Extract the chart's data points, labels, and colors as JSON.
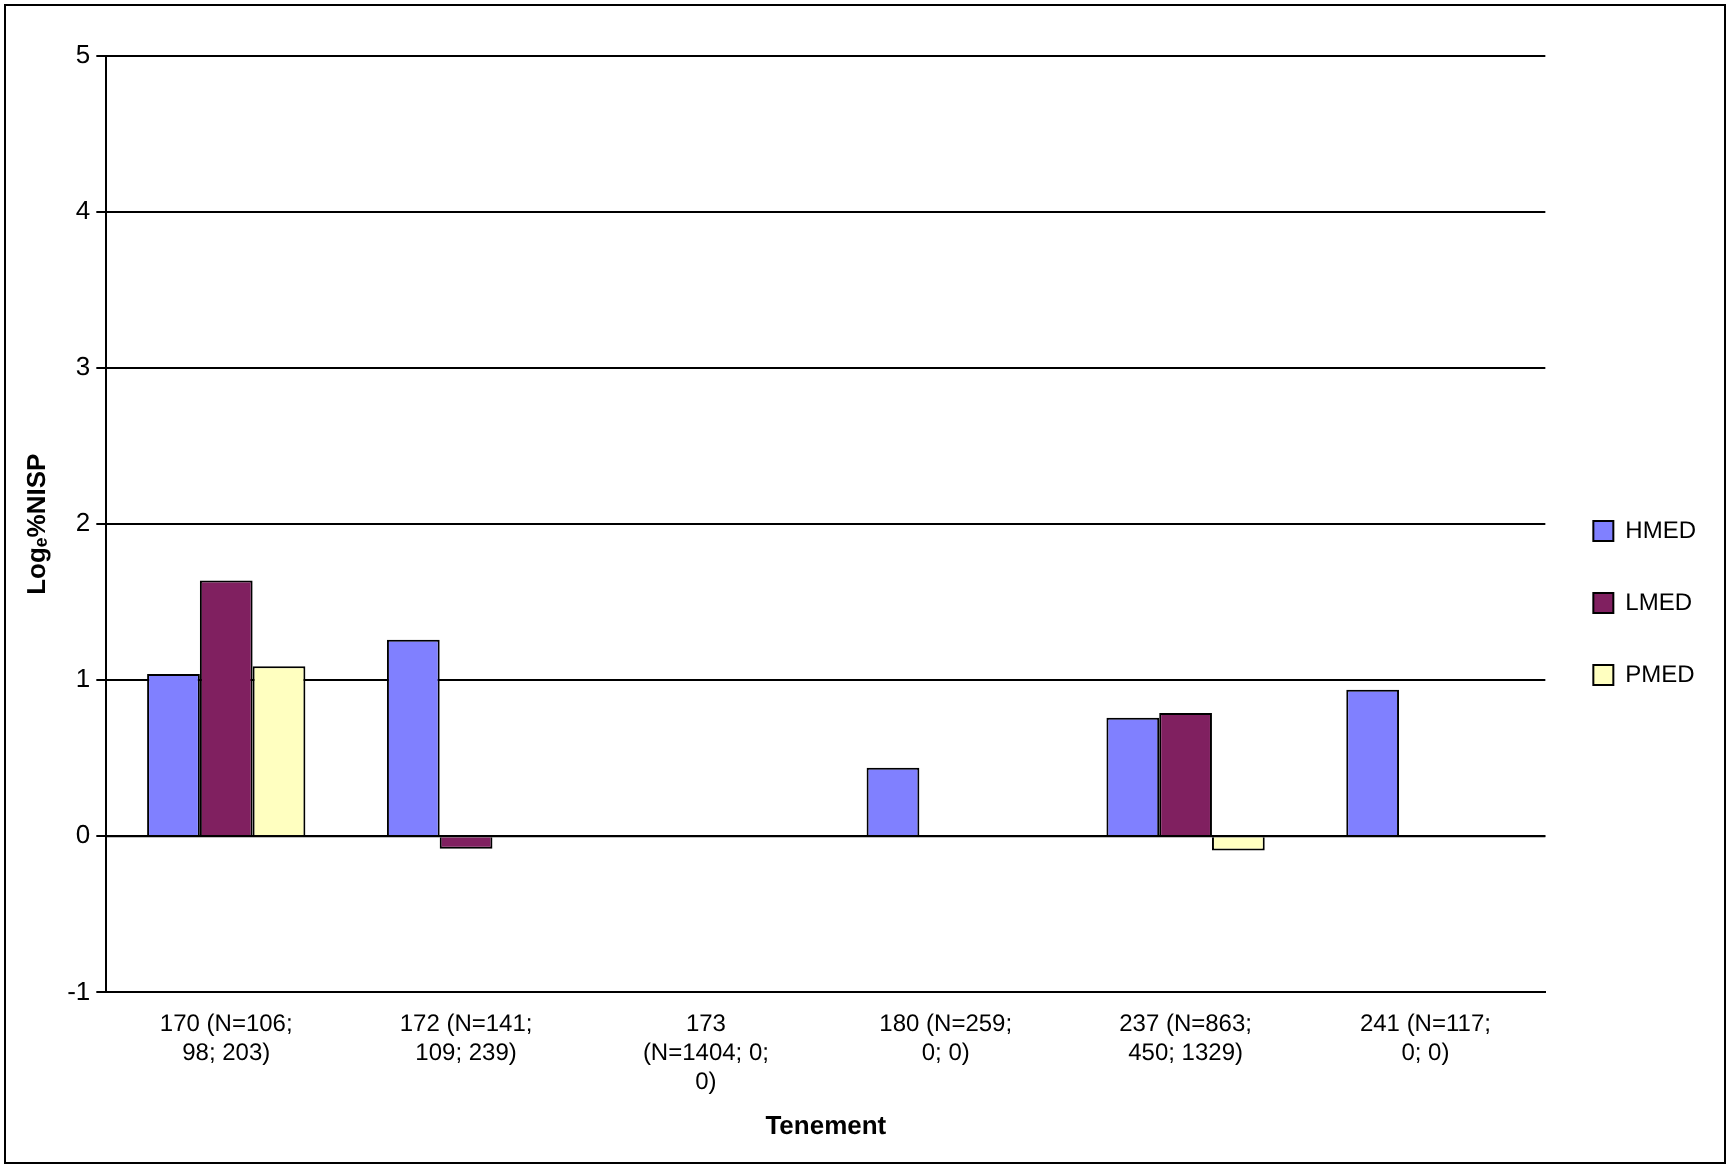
{
  "chart_data": {
    "type": "bar",
    "xlabel": "Tenement",
    "ylabel": "Logₑ%NISP",
    "categories": [
      "170 (N=106; 98; 203)",
      "172 (N=141; 109; 239)",
      "173 (N=1404; 0; 0)",
      "180 (N=259; 0; 0)",
      "237 (N=863; 450; 1329)",
      "241 (N=117; 0; 0)"
    ],
    "series": [
      {
        "name": "HMED",
        "color": "#8080ff",
        "values": [
          1.04,
          1.26,
          null,
          0.44,
          0.76,
          0.94
        ]
      },
      {
        "name": "LMED",
        "color": "#802060",
        "values": [
          1.64,
          -0.08,
          null,
          null,
          0.79,
          null
        ]
      },
      {
        "name": "PMED",
        "color": "#ffffc0",
        "values": [
          1.09,
          null,
          null,
          null,
          -0.09,
          null
        ]
      }
    ],
    "ylim": [
      -1,
      5
    ],
    "yticks": [
      -1,
      0,
      1,
      2,
      3,
      4,
      5
    ],
    "grid": "y",
    "legend": "right"
  }
}
